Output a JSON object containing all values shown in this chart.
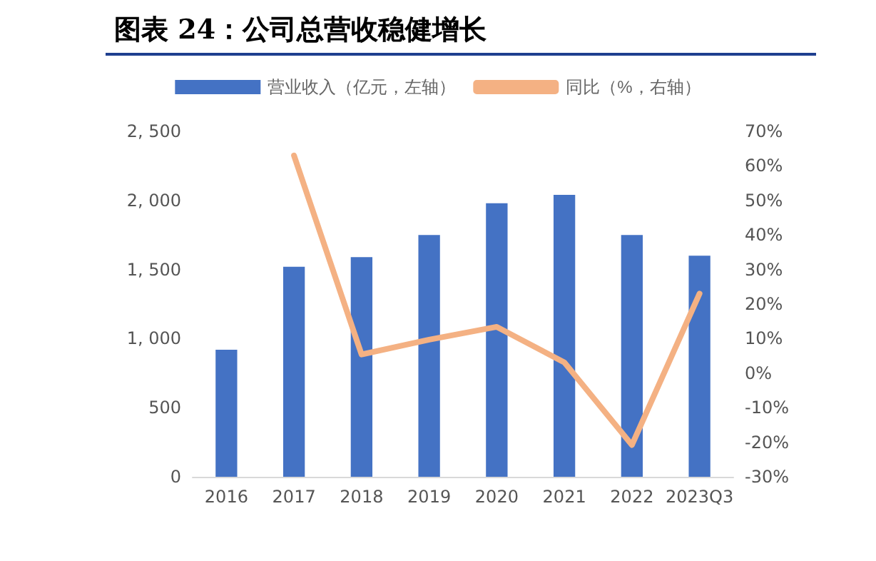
{
  "chart_data": {
    "type": "bar",
    "title": "图表 24：公司总营收稳健增长",
    "categories": [
      "2016",
      "2017",
      "2018",
      "2019",
      "2020",
      "2021",
      "2022",
      "2023Q3"
    ],
    "series": [
      {
        "name": "营业收入（亿元，左轴）",
        "color": "#4472c4",
        "values": [
          920,
          1520,
          1590,
          1750,
          1980,
          2040,
          1750,
          1600
        ]
      },
      {
        "name": "同比（%，右轴）",
        "type": "line",
        "axis": "y2",
        "color": "#f4b183",
        "values": [
          null,
          63,
          5.4,
          9.7,
          13.4,
          3.1,
          -20.8,
          23
        ]
      }
    ],
    "ylim": [
      0,
      2500
    ],
    "yticks": [
      0,
      500,
      {
        "value": 1000,
        "label": "1, 000"
      },
      {
        "value": 1500,
        "label": "1, 500"
      },
      {
        "value": 2000,
        "label": "2, 000"
      },
      {
        "value": 2500,
        "label": "2, 500"
      }
    ],
    "y2lim": [
      -30,
      70
    ],
    "y2ticks": [
      {
        "value": -30,
        "label": "-30%"
      },
      {
        "value": -20,
        "label": "-20%"
      },
      {
        "value": -10,
        "label": "-10%"
      },
      {
        "value": 0,
        "label": "0%"
      },
      {
        "value": 10,
        "label": "10%"
      },
      {
        "value": 20,
        "label": "20%"
      },
      {
        "value": 30,
        "label": "30%"
      },
      {
        "value": 40,
        "label": "40%"
      },
      {
        "value": 50,
        "label": "50%"
      },
      {
        "value": 60,
        "label": "60%"
      },
      {
        "value": 70,
        "label": "70%"
      }
    ],
    "grid": false,
    "legend": "top",
    "marker": "none",
    "line_style": "solid"
  }
}
